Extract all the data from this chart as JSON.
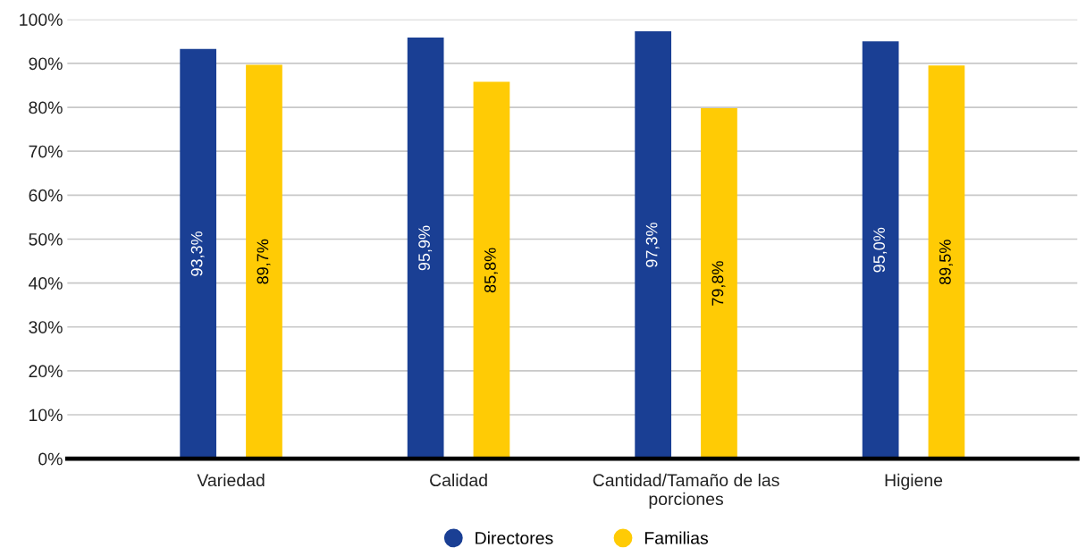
{
  "chart_data": {
    "type": "bar",
    "categories": [
      "Variedad",
      "Calidad",
      "Cantidad/Tamaño de las\nporciones",
      "Higiene"
    ],
    "series": [
      {
        "name": "Directores",
        "color": "#1a3f94",
        "values": [
          93.3,
          95.9,
          97.3,
          95.0
        ],
        "value_labels": [
          "93,3%",
          "95,9%",
          "97,3%",
          "95,0%"
        ]
      },
      {
        "name": "Familias",
        "color": "#ffcb05",
        "values": [
          89.7,
          85.8,
          79.8,
          89.5
        ],
        "value_labels": [
          "89,7%",
          "85,8%",
          "79,8%",
          "89,5%"
        ]
      }
    ],
    "ylim": [
      0,
      100
    ],
    "yticks": [
      {
        "value": 0,
        "label": "0%"
      },
      {
        "value": 10,
        "label": "10%"
      },
      {
        "value": 20,
        "label": "20%"
      },
      {
        "value": 30,
        "label": "30%"
      },
      {
        "value": 40,
        "label": "40%"
      },
      {
        "value": 50,
        "label": "50%"
      },
      {
        "value": 60,
        "label": "60%"
      },
      {
        "value": 70,
        "label": "70%"
      },
      {
        "value": 80,
        "label": "80%"
      },
      {
        "value": 90,
        "label": "90%"
      },
      {
        "value": 100,
        "label": "100%"
      }
    ],
    "grid": "y",
    "legend": "bottom"
  }
}
